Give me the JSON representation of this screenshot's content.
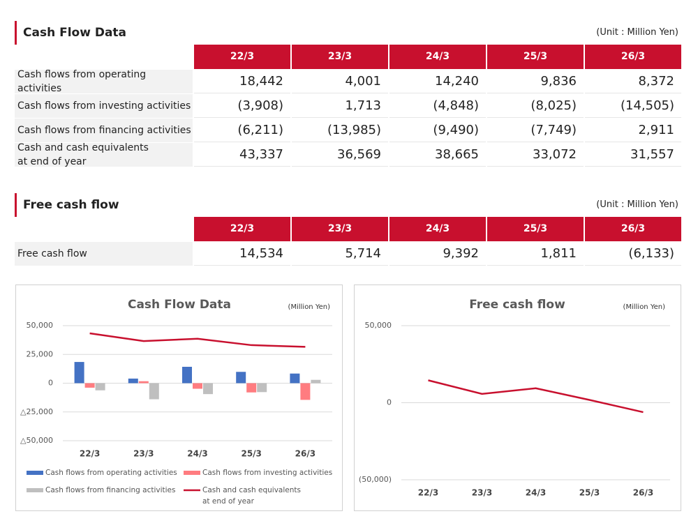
{
  "tables": [
    {
      "title": "Cash Flow Data",
      "unit": "(Unit : Million Yen)",
      "columns": [
        "22/3",
        "23/3",
        "24/3",
        "25/3",
        "26/3"
      ],
      "rows": [
        [
          "Cash flows from operating activities",
          "18,442",
          "4,001",
          "14,240",
          "9,836",
          "8,372"
        ],
        [
          "Cash flows from investing activities",
          "(3,908)",
          "1,713",
          "(4,848)",
          "(8,025)",
          "(14,505)"
        ],
        [
          "Cash flows from financing activities",
          "(6,211)",
          "(13,985)",
          "(9,490)",
          "(7,749)",
          "2,911"
        ],
        [
          "Cash and cash equivalents\nat end of year",
          "43,337",
          "36,569",
          "38,665",
          "33,072",
          "31,557"
        ]
      ]
    },
    {
      "title": "Free cash flow",
      "unit": "(Unit : Million Yen)",
      "columns": [
        "22/3",
        "23/3",
        "24/3",
        "25/3",
        "26/3"
      ],
      "rows": [
        [
          "Free cash flow",
          "14,534",
          "5,714",
          "9,392",
          "1,811",
          "(6,133)"
        ]
      ]
    }
  ],
  "chart_data": [
    {
      "type": "combo",
      "title": "Cash Flow Data",
      "unit": "(Million Yen)",
      "categories": [
        "22/3",
        "23/3",
        "24/3",
        "25/3",
        "26/3"
      ],
      "series": [
        {
          "name": "Cash flows from operating activities",
          "type": "bar",
          "color": "#4472c4",
          "values": [
            18442,
            4001,
            14240,
            9836,
            8372
          ]
        },
        {
          "name": "Cash flows from investing activities",
          "type": "bar",
          "color": "#ff7c80",
          "values": [
            -3908,
            1713,
            -4848,
            -8025,
            -14505
          ]
        },
        {
          "name": "Cash flows from financing activities",
          "type": "bar",
          "color": "#bfbfbf",
          "values": [
            -6211,
            -13985,
            -9490,
            -7749,
            2911
          ]
        },
        {
          "name": "Cash and cash equivalents\nat end of year",
          "type": "line",
          "color": "#c8102e",
          "values": [
            43337,
            36569,
            38665,
            33072,
            31557
          ]
        }
      ],
      "ylim": [
        -50000,
        50000
      ],
      "yticks": [
        {
          "value": 50000,
          "label": "50,000"
        },
        {
          "value": 25000,
          "label": "25,000"
        },
        0,
        {
          "value": -25000,
          "label": "△25,000"
        },
        {
          "value": -50000,
          "label": "△50,000"
        }
      ],
      "grid": true,
      "legend": "bottom"
    },
    {
      "type": "line",
      "title": "Free cash flow",
      "unit": "(Million Yen)",
      "categories": [
        "22/3",
        "23/3",
        "24/3",
        "25/3",
        "26/3"
      ],
      "values": [
        14534,
        5714,
        9392,
        1811,
        -6133
      ],
      "color": "#c8102e",
      "ylim": [
        -50000,
        50000
      ],
      "yticks": [
        {
          "value": 50000,
          "label": "50,000"
        },
        0,
        {
          "value": -50000,
          "label": "(50,000)"
        }
      ],
      "grid": true
    }
  ]
}
